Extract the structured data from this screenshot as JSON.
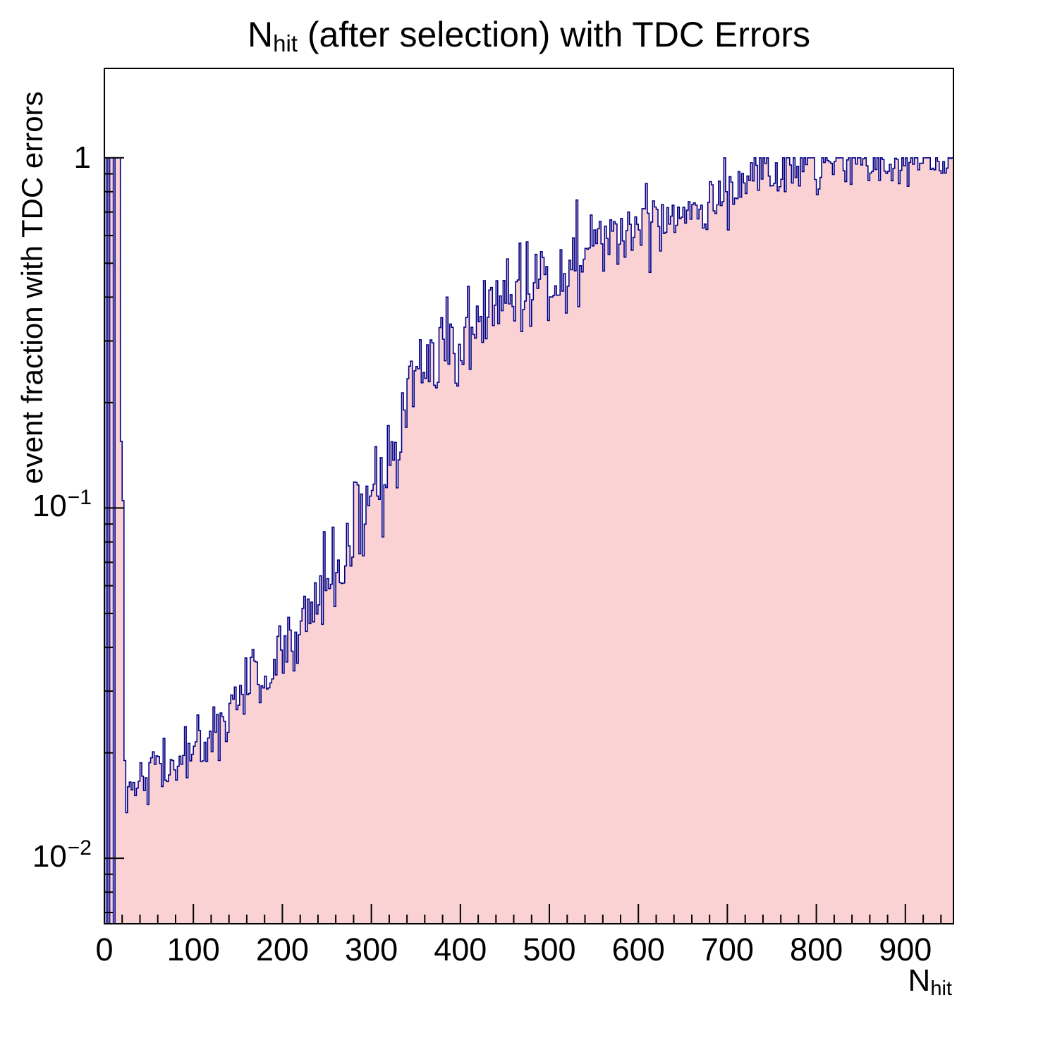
{
  "title": {
    "prefix": "N",
    "sub": "hit",
    "suffix": " (after selection) with TDC Errors"
  },
  "y_axis": {
    "label": "event fraction with TDC errors",
    "tick_labels": [
      {
        "mant": "1",
        "exp": ""
      },
      {
        "mant": "10",
        "exp": "−1"
      },
      {
        "mant": "10",
        "exp": "−2"
      }
    ]
  },
  "x_axis": {
    "label_prefix": "N",
    "label_sub": "hit"
  },
  "chart_data": {
    "type": "bar",
    "subtype": "histogram-log-y",
    "title": "N_hit (after selection) with TDC Errors",
    "xlabel": "N_hit",
    "ylabel": "event fraction with TDC errors",
    "x_range": [
      0,
      954
    ],
    "y_scale": "log",
    "y_range": [
      0.0065,
      1.8
    ],
    "y_saturation": 1,
    "bin_width": 2,
    "x_ticks": [
      0,
      100,
      200,
      300,
      400,
      500,
      600,
      700,
      800,
      900
    ],
    "x_minor_step": 20,
    "y_major_ticks": [
      0.01,
      0.1,
      1
    ],
    "grid": false,
    "legend": "none",
    "fill_color": "#fbd2d3",
    "line_color": "#000088",
    "frame_color": "#000000",
    "prefix_bins": [
      [
        0,
        0
      ],
      [
        2,
        1
      ],
      [
        4,
        0
      ],
      [
        6,
        1
      ],
      [
        8,
        1
      ],
      [
        10,
        0
      ],
      [
        12,
        1
      ],
      [
        14,
        1
      ],
      [
        16,
        1
      ],
      [
        18,
        0.155
      ],
      [
        20,
        0.105
      ],
      [
        22,
        0.019
      ],
      [
        24,
        0.0135
      ],
      [
        26,
        0.016
      ],
      [
        28,
        0.0165
      ]
    ],
    "trend": [
      [
        30,
        0.0165
      ],
      [
        50,
        0.018
      ],
      [
        70,
        0.018
      ],
      [
        100,
        0.02
      ],
      [
        120,
        0.023
      ],
      [
        150,
        0.028
      ],
      [
        170,
        0.032
      ],
      [
        200,
        0.038
      ],
      [
        220,
        0.045
      ],
      [
        250,
        0.06
      ],
      [
        270,
        0.075
      ],
      [
        290,
        0.095
      ],
      [
        310,
        0.115
      ],
      [
        330,
        0.15
      ],
      [
        340,
        0.21
      ],
      [
        360,
        0.24
      ],
      [
        380,
        0.27
      ],
      [
        400,
        0.3
      ],
      [
        430,
        0.34
      ],
      [
        450,
        0.4
      ],
      [
        470,
        0.42
      ],
      [
        500,
        0.47
      ],
      [
        530,
        0.52
      ],
      [
        560,
        0.57
      ],
      [
        600,
        0.64
      ],
      [
        640,
        0.7
      ],
      [
        680,
        0.77
      ],
      [
        700,
        0.82
      ],
      [
        720,
        0.88
      ],
      [
        740,
        0.92
      ],
      [
        770,
        0.94
      ],
      [
        800,
        0.96
      ],
      [
        850,
        0.97
      ],
      [
        900,
        0.975
      ],
      [
        954,
        0.98
      ]
    ],
    "noise": {
      "seed": 42,
      "sigma_log10": [
        [
          30,
          0.025
        ],
        [
          80,
          0.04
        ],
        [
          150,
          0.055
        ],
        [
          250,
          0.07
        ],
        [
          350,
          0.075
        ],
        [
          450,
          0.07
        ],
        [
          550,
          0.06
        ],
        [
          650,
          0.055
        ],
        [
          750,
          0.045
        ],
        [
          850,
          0.035
        ],
        [
          954,
          0.03
        ]
      ]
    }
  }
}
